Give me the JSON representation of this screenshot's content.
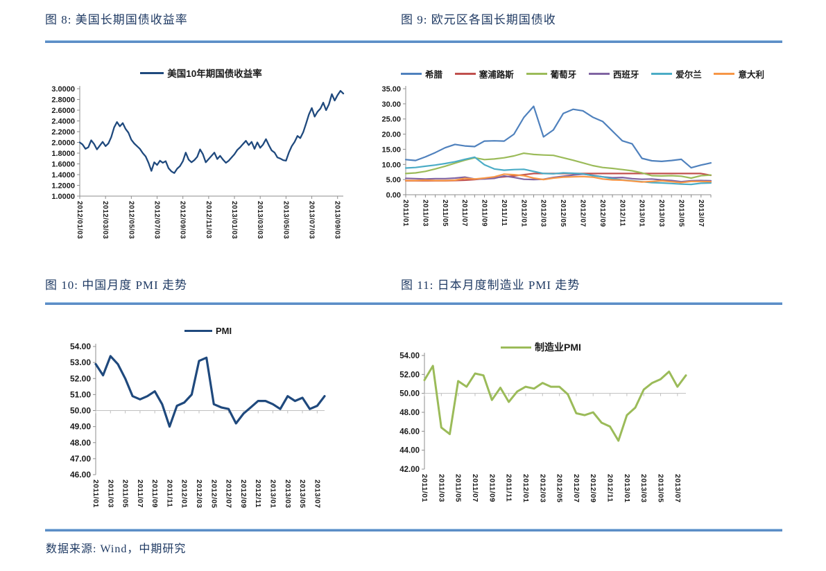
{
  "page": {
    "titles_row1": {
      "left": "图 8: 美国长期国债收益率",
      "right": "图 9: 欧元区各国长期国债收"
    },
    "titles_row2": {
      "left": "图 10: 中国月度 PMI 走势",
      "right": "图 11: 日本月度制造业 PMI 走势"
    },
    "footer": "数据来源: Wind，中期研究",
    "accent_rule_color": "#5B8DC6",
    "title_color": "#1F3A63"
  },
  "chart_data": [
    {
      "id": "us10y",
      "type": "line",
      "title": "图 8: 美国长期国债收益率",
      "legend_position": "top",
      "ylim": [
        1.0,
        3.0
      ],
      "ytick_values": [
        3.0,
        2.8,
        2.6,
        2.4,
        2.2,
        2.0,
        1.8,
        1.6,
        1.4,
        1.2,
        1.0
      ],
      "ytick_labels": [
        "3.0000",
        "2.8000",
        "2.6000",
        "2.4000",
        "2.2000",
        "2.0000",
        "1.8000",
        "1.6000",
        "1.4000",
        "1.2000",
        "1.0000"
      ],
      "xtick_labels": [
        "2012/01/03",
        "2012/03/03",
        "2012/05/03",
        "2012/07/03",
        "2012/09/03",
        "2012/11/03",
        "2013/01/03",
        "2013/03/03",
        "2013/05/03",
        "2013/07/03",
        "2013/09/03"
      ],
      "xtick_indices": [
        0,
        9,
        18,
        27,
        36,
        45,
        54,
        63,
        72,
        81,
        90
      ],
      "series": [
        {
          "name": "美国10年期国债收益率",
          "color": "#1F497D",
          "values": [
            2.0,
            1.96,
            1.88,
            1.91,
            2.04,
            1.97,
            1.87,
            1.94,
            2.01,
            1.93,
            1.98,
            2.1,
            2.28,
            2.38,
            2.3,
            2.36,
            2.25,
            2.18,
            2.05,
            1.98,
            1.93,
            1.88,
            1.8,
            1.74,
            1.62,
            1.47,
            1.63,
            1.58,
            1.66,
            1.62,
            1.65,
            1.52,
            1.46,
            1.43,
            1.51,
            1.56,
            1.65,
            1.81,
            1.68,
            1.63,
            1.67,
            1.73,
            1.87,
            1.78,
            1.63,
            1.69,
            1.75,
            1.81,
            1.69,
            1.75,
            1.68,
            1.62,
            1.66,
            1.72,
            1.78,
            1.86,
            1.91,
            1.97,
            2.03,
            1.95,
            2.01,
            1.88,
            2.0,
            1.9,
            1.96,
            2.06,
            1.95,
            1.85,
            1.81,
            1.72,
            1.7,
            1.67,
            1.66,
            1.81,
            1.93,
            2.01,
            2.12,
            2.08,
            2.19,
            2.35,
            2.52,
            2.64,
            2.48,
            2.57,
            2.63,
            2.74,
            2.6,
            2.71,
            2.9,
            2.78,
            2.88,
            2.96,
            2.91
          ]
        }
      ]
    },
    {
      "id": "euro",
      "type": "line",
      "title": "图 9: 欧元区各国长期国债收",
      "legend_position": "top",
      "ylim": [
        0,
        35
      ],
      "ytick_values": [
        35,
        30,
        25,
        20,
        15,
        10,
        5,
        0
      ],
      "ytick_labels": [
        "35.00",
        "30.00",
        "25.00",
        "20.00",
        "15.00",
        "10.00",
        "5.00",
        "0.00"
      ],
      "xtick_labels": [
        "2011/01",
        "2011/03",
        "2011/05",
        "2011/07",
        "2011/09",
        "2011/11",
        "2012/01",
        "2012/03",
        "2012/05",
        "2012/07",
        "2012/09",
        "2012/11",
        "2013/01",
        "2013/03",
        "2013/05",
        "2013/07"
      ],
      "xtick_indices": [
        0,
        2,
        4,
        6,
        8,
        10,
        12,
        14,
        16,
        18,
        20,
        22,
        24,
        26,
        28,
        30
      ],
      "series": [
        {
          "name": "希腊",
          "color": "#4F81BD",
          "values": [
            11.6,
            11.3,
            12.5,
            13.9,
            15.5,
            16.6,
            16.1,
            15.9,
            17.7,
            17.8,
            17.7,
            20.0,
            25.5,
            29.2,
            19.1,
            21.4,
            26.8,
            28.2,
            27.7,
            25.6,
            24.2,
            21.0,
            17.8,
            16.8,
            12.0,
            11.2,
            11.0,
            11.3,
            11.7,
            8.9,
            9.8,
            10.5
          ]
        },
        {
          "name": "塞浦路斯",
          "color": "#C0504D",
          "values": [
            4.6,
            4.6,
            4.6,
            4.6,
            4.6,
            4.7,
            4.8,
            5.0,
            5.3,
            5.6,
            5.9,
            6.2,
            6.6,
            7.0,
            7.0,
            7.0,
            7.0,
            7.0,
            7.0,
            7.0,
            7.0,
            7.0,
            7.0,
            7.0,
            7.0,
            7.0,
            7.0,
            7.0,
            7.0,
            7.0,
            7.0,
            6.4
          ]
        },
        {
          "name": "葡萄牙",
          "color": "#9BBB59",
          "values": [
            7.0,
            7.2,
            7.7,
            8.5,
            9.4,
            10.4,
            11.4,
            12.2,
            11.6,
            11.8,
            12.2,
            12.8,
            13.7,
            13.3,
            13.1,
            13.0,
            12.2,
            11.4,
            10.5,
            9.6,
            9.0,
            8.7,
            8.3,
            7.9,
            7.2,
            6.3,
            6.2,
            6.3,
            6.1,
            5.5,
            6.3,
            6.5
          ]
        },
        {
          "name": "西班牙",
          "color": "#8064A2",
          "values": [
            5.4,
            5.3,
            5.2,
            5.3,
            5.3,
            5.5,
            5.8,
            5.2,
            5.2,
            5.4,
            6.2,
            5.7,
            5.1,
            5.0,
            5.1,
            5.7,
            6.1,
            6.5,
            6.8,
            6.4,
            5.9,
            5.6,
            5.7,
            5.3,
            5.1,
            5.2,
            4.9,
            4.7,
            4.3,
            4.6,
            4.7,
            4.6
          ]
        },
        {
          "name": "爱尔兰",
          "color": "#4BACC6",
          "values": [
            8.8,
            9.0,
            9.4,
            9.8,
            10.3,
            10.9,
            11.7,
            12.4,
            9.9,
            8.5,
            8.1,
            8.3,
            8.4,
            7.7,
            7.0,
            6.9,
            7.2,
            7.1,
            6.9,
            6.3,
            5.9,
            5.3,
            4.9,
            4.6,
            4.3,
            4.0,
            3.9,
            3.7,
            3.5,
            3.4,
            3.8,
            3.9
          ]
        },
        {
          "name": "意大利",
          "color": "#F79646",
          "values": [
            4.7,
            4.7,
            4.8,
            4.7,
            4.7,
            4.8,
            5.4,
            5.2,
            5.5,
            5.9,
            6.8,
            6.6,
            6.3,
            5.5,
            5.0,
            5.5,
            5.8,
            5.9,
            6.0,
            5.8,
            5.2,
            4.9,
            4.8,
            4.5,
            4.2,
            4.4,
            4.6,
            4.3,
            4.0,
            4.4,
            4.4,
            4.3
          ]
        }
      ]
    },
    {
      "id": "cnpmi",
      "type": "line",
      "title": "图 10: 中国月度 PMI 走势",
      "legend_position": "top",
      "ylim": [
        46,
        54
      ],
      "baseline": 50,
      "baseline_color": "#BFBFBF",
      "ytick_values": [
        54,
        53,
        52,
        51,
        50,
        49,
        48,
        47,
        46
      ],
      "ytick_labels": [
        "54.00",
        "53.00",
        "52.00",
        "51.00",
        "50.00",
        "49.00",
        "48.00",
        "47.00",
        "46.00"
      ],
      "xtick_labels": [
        "2011/01",
        "2011/03",
        "2011/05",
        "2011/07",
        "2011/09",
        "2011/11",
        "2012/01",
        "2012/03",
        "2012/05",
        "2012/07",
        "2012/09",
        "2012/11",
        "2013/01",
        "2013/03",
        "2013/05",
        "2013/07"
      ],
      "xtick_indices": [
        0,
        2,
        4,
        6,
        8,
        10,
        12,
        14,
        16,
        18,
        20,
        22,
        24,
        26,
        28,
        30
      ],
      "series": [
        {
          "name": "PMI",
          "color": "#1F497D",
          "values": [
            52.9,
            52.2,
            53.4,
            52.9,
            52.0,
            50.9,
            50.7,
            50.9,
            51.2,
            50.4,
            49.0,
            50.3,
            50.5,
            51.0,
            53.1,
            53.3,
            50.4,
            50.2,
            50.1,
            49.2,
            49.8,
            50.2,
            50.6,
            50.6,
            50.4,
            50.1,
            50.9,
            50.6,
            50.8,
            50.1,
            50.3,
            50.9
          ]
        }
      ]
    },
    {
      "id": "jppmi",
      "type": "line",
      "title": "图 11: 日本月度制造业 PMI 走势",
      "legend_position": "top",
      "ylim": [
        42,
        54
      ],
      "baseline": 50,
      "baseline_color": "#BFBFBF",
      "ytick_values": [
        54,
        52,
        50,
        48,
        46,
        44,
        42
      ],
      "ytick_labels": [
        "54.00",
        "52.00",
        "50.00",
        "48.00",
        "46.00",
        "44.00",
        "42.00"
      ],
      "xtick_labels": [
        "2011/01",
        "2011/03",
        "2011/05",
        "2011/07",
        "2011/09",
        "2011/11",
        "2012/01",
        "2012/03",
        "2012/05",
        "2012/07",
        "2012/09",
        "2012/11",
        "2013/01",
        "2013/03",
        "2013/05",
        "2013/07"
      ],
      "xtick_indices": [
        0,
        2,
        4,
        6,
        8,
        10,
        12,
        14,
        16,
        18,
        20,
        22,
        24,
        26,
        28,
        30
      ],
      "series": [
        {
          "name": "制造业PMI",
          "color": "#9BBB59",
          "values": [
            51.4,
            52.9,
            46.4,
            45.7,
            51.3,
            50.7,
            52.1,
            51.9,
            49.3,
            50.6,
            49.1,
            50.2,
            50.7,
            50.5,
            51.1,
            50.7,
            50.7,
            49.9,
            47.9,
            47.7,
            48.0,
            46.9,
            46.5,
            45.0,
            47.7,
            48.5,
            50.4,
            51.1,
            51.5,
            52.3,
            50.7,
            51.9
          ]
        }
      ]
    }
  ]
}
